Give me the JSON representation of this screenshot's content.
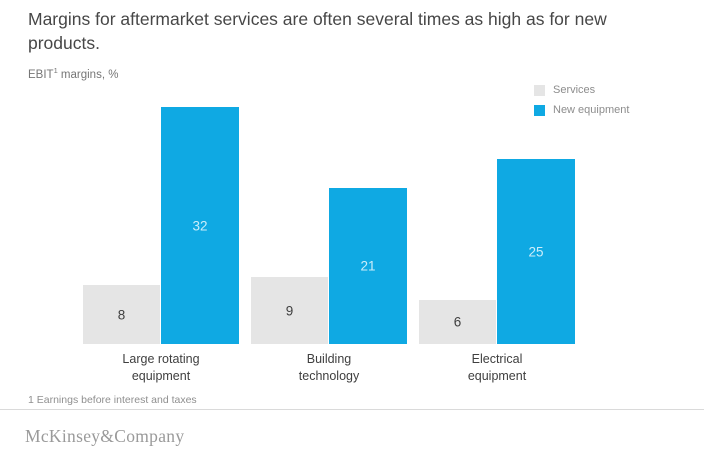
{
  "title": "Margins for aftermarket services are often several times as high as for new products.",
  "subtitle": {
    "prefix": "EBIT",
    "superscript": "1",
    "suffix": " margins, %"
  },
  "legend": {
    "items": [
      {
        "label": "Services",
        "color": "#e5e5e5"
      },
      {
        "label": "New equipment",
        "color": "#0fa9e3"
      }
    ]
  },
  "chart_data": {
    "type": "bar",
    "categories": [
      "Large rotating\nequipment",
      "Building\ntechnology",
      "Electrical\nequipment"
    ],
    "series": [
      {
        "name": "Services",
        "values": [
          8,
          9,
          6
        ],
        "color": "#e5e5e5",
        "label_color": "#3f3f3f"
      },
      {
        "name": "New equipment",
        "values": [
          32,
          21,
          25
        ],
        "color": "#0fa9e3",
        "label_color": "#cbedfa"
      }
    ],
    "title": "Margins for aftermarket services are often several times as high as for new products.",
    "ylabel": "EBIT margins, %",
    "ylim": [
      0,
      32
    ],
    "grid": false,
    "axis_lines": false,
    "value_labels": "centered-in-bar",
    "legend_position": "top-right"
  },
  "footnote": "1 Earnings before interest and taxes",
  "footer": {
    "brand": "McKinsey&Company"
  }
}
